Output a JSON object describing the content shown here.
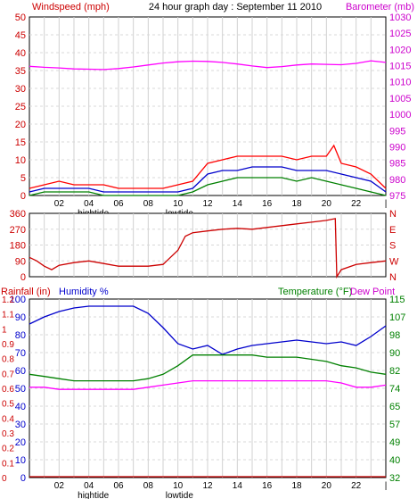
{
  "chart_data": [
    {
      "type": "line",
      "title": "24 hour graph day : September 11 2010",
      "ylabel": "Windspeed (mph)",
      "y2label": "Barometer (mb)",
      "ylim": [
        0,
        50
      ],
      "y2lim": [
        975,
        1030
      ],
      "yticks": [
        "0",
        "5",
        "10",
        "15",
        "20",
        "25",
        "30",
        "35",
        "40",
        "45",
        "50"
      ],
      "y2ticks": [
        "975",
        "980",
        "985",
        "990",
        "995",
        "1000",
        "1005",
        "1010",
        "1015",
        "1020",
        "1025",
        "1030"
      ],
      "xticks": [
        "02",
        "04",
        "06",
        "08",
        "10",
        "12",
        "14",
        "16",
        "18",
        "20",
        "22",
        "|"
      ],
      "xlim": [
        0,
        24
      ],
      "annotations": [
        {
          "text": "hightide",
          "x": 4.3
        },
        {
          "text": "lowtide",
          "x": 10.1
        }
      ],
      "series": [
        {
          "color": "#ff00ff",
          "axis": "right",
          "x": [
            0,
            1,
            2,
            3,
            4,
            5,
            6,
            7,
            8,
            9,
            10,
            11,
            12,
            13,
            14,
            15,
            16,
            17,
            18,
            19,
            20,
            21,
            22,
            23,
            24
          ],
          "y": [
            1014.8,
            1014.5,
            1014.3,
            1014.0,
            1013.9,
            1013.8,
            1014.1,
            1014.6,
            1015.2,
            1015.8,
            1016.2,
            1016.4,
            1016.3,
            1016.0,
            1015.5,
            1014.9,
            1014.4,
            1014.7,
            1015.2,
            1015.5,
            1015.4,
            1015.3,
            1015.7,
            1016.5,
            1016.0
          ]
        },
        {
          "color": "#ff0000",
          "axis": "left",
          "x": [
            0,
            1,
            2,
            3,
            4,
            5,
            6,
            7,
            8,
            9,
            10,
            11,
            12,
            13,
            14,
            15,
            16,
            17,
            18,
            19,
            20,
            20.5,
            21,
            22,
            23,
            24
          ],
          "y": [
            2,
            3,
            4,
            3,
            3,
            3,
            2,
            2,
            2,
            2,
            3,
            4,
            9,
            10,
            11,
            11,
            11,
            11,
            10,
            11,
            11,
            14,
            9,
            8,
            6,
            2
          ]
        },
        {
          "color": "#0000cc",
          "axis": "left",
          "x": [
            0,
            1,
            2,
            3,
            4,
            5,
            6,
            7,
            8,
            9,
            10,
            11,
            12,
            13,
            14,
            15,
            16,
            17,
            18,
            19,
            20,
            21,
            22,
            23,
            24
          ],
          "y": [
            1,
            2,
            2,
            2,
            2,
            1,
            1,
            1,
            1,
            1,
            1,
            2,
            6,
            7,
            7,
            8,
            8,
            8,
            7,
            7,
            7,
            6,
            5,
            4,
            1
          ]
        },
        {
          "color": "#008000",
          "axis": "left",
          "x": [
            0,
            1,
            2,
            3,
            4,
            5,
            6,
            7,
            8,
            9,
            10,
            11,
            12,
            13,
            14,
            15,
            16,
            17,
            18,
            19,
            20,
            21,
            22,
            23,
            24
          ],
          "y": [
            0,
            1,
            1,
            1,
            1,
            0,
            0,
            0,
            0,
            0,
            0,
            1,
            3,
            4,
            5,
            5,
            5,
            5,
            4,
            5,
            4,
            3,
            2,
            1,
            0
          ]
        }
      ]
    },
    {
      "type": "line",
      "ylim": [
        0,
        360
      ],
      "yticks": [
        "0",
        "90",
        "180",
        "270",
        "360"
      ],
      "y2ticks": [
        "N",
        "W",
        "S",
        "E",
        "N"
      ],
      "xticks": [
        "02",
        "04",
        "06",
        "08",
        "10",
        "12",
        "14",
        "16",
        "18",
        "20",
        "22",
        "|"
      ],
      "xlim": [
        0,
        24
      ],
      "series": [
        {
          "color": "#cc0000",
          "x": [
            0,
            0.5,
            1,
            1.5,
            2,
            3,
            4,
            5,
            6,
            7,
            8,
            9,
            9.5,
            10,
            10.5,
            11,
            12,
            13,
            14,
            15,
            16,
            17,
            18,
            19,
            20,
            20.6,
            20.7,
            21,
            22,
            23,
            24
          ],
          "y": [
            110,
            90,
            60,
            40,
            65,
            80,
            90,
            75,
            60,
            60,
            60,
            70,
            110,
            150,
            230,
            250,
            260,
            270,
            275,
            270,
            280,
            290,
            300,
            310,
            320,
            330,
            0,
            40,
            70,
            80,
            90
          ]
        }
      ]
    },
    {
      "type": "line",
      "legend": [
        "Rainfall (in)",
        "Humidity %",
        "Temperature (°F)",
        "Dew Point"
      ],
      "ylim": [
        0,
        100
      ],
      "yticks": [
        "0",
        "10",
        "20",
        "30",
        "40",
        "50",
        "60",
        "70",
        "80",
        "90",
        "100"
      ],
      "rain_ticks": [
        "0",
        "0.1",
        "0.2",
        "0.3",
        "0.4",
        "0.5",
        "0.6",
        "0.7",
        "0.8",
        "0.9",
        "1",
        "1.1",
        "1.2"
      ],
      "y2lim": [
        32,
        115
      ],
      "y2ticks": [
        "32",
        "40",
        "49",
        "57",
        "65",
        "74",
        "82",
        "90",
        "98",
        "107",
        "115"
      ],
      "xticks": [
        "02",
        "04",
        "06",
        "08",
        "10",
        "12",
        "14",
        "16",
        "18",
        "20",
        "22",
        "|"
      ],
      "xlim": [
        0,
        24
      ],
      "annotations": [
        {
          "text": "hightide",
          "x": 4.3
        },
        {
          "text": "lowtide",
          "x": 10.1
        }
      ],
      "series": [
        {
          "name": "Humidity %",
          "color": "#0000cc",
          "axis": "left",
          "x": [
            0,
            1,
            2,
            3,
            4,
            5,
            6,
            7,
            8,
            9,
            10,
            11,
            12,
            13,
            14,
            15,
            16,
            17,
            18,
            19,
            20,
            21,
            22,
            23,
            24
          ],
          "y": [
            86,
            90,
            93,
            95,
            96,
            96,
            96,
            96,
            92,
            84,
            75,
            72,
            74,
            69,
            72,
            74,
            75,
            76,
            77,
            76,
            75,
            76,
            74,
            79,
            85
          ]
        },
        {
          "name": "Temperature (°F)",
          "color": "#008000",
          "axis": "right",
          "x": [
            0,
            1,
            2,
            3,
            4,
            5,
            6,
            7,
            8,
            9,
            10,
            11,
            12,
            13,
            14,
            15,
            16,
            17,
            18,
            19,
            20,
            21,
            22,
            23,
            24
          ],
          "y": [
            80,
            79,
            78,
            77,
            77,
            77,
            77,
            77,
            78,
            80,
            84,
            89,
            89,
            89,
            89,
            89,
            88,
            88,
            88,
            87,
            86,
            84,
            83,
            81,
            80
          ]
        },
        {
          "name": "Dew Point",
          "color": "#ff00ff",
          "axis": "right",
          "x": [
            0,
            1,
            2,
            3,
            4,
            5,
            6,
            7,
            8,
            9,
            10,
            11,
            12,
            13,
            14,
            15,
            16,
            17,
            18,
            19,
            20,
            21,
            22,
            23,
            24
          ],
          "y": [
            74,
            74,
            73,
            73,
            73,
            73,
            73,
            73,
            74,
            75,
            76,
            77,
            77,
            77,
            77,
            77,
            77,
            77,
            77,
            77,
            77,
            76,
            74,
            74,
            75
          ]
        },
        {
          "name": "Rainfall (in)",
          "color": "#cc0000",
          "axis": "rain",
          "x": [
            0,
            24
          ],
          "y": [
            0,
            0
          ]
        }
      ]
    }
  ]
}
